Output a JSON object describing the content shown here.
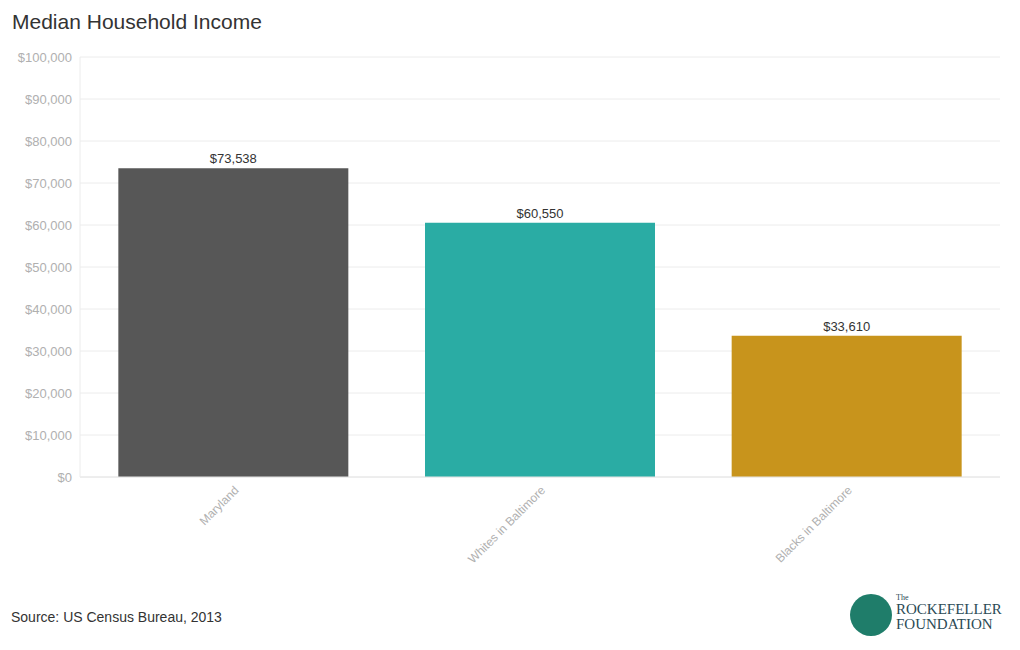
{
  "chart_data": {
    "type": "bar",
    "title": "Median Household Income",
    "categories": [
      "Maryland",
      "Whites in Baltimore",
      "Blacks in Baltimore"
    ],
    "values": [
      73538,
      60550,
      33610
    ],
    "value_labels": [
      "$73,538",
      "$60,550",
      "$33,610"
    ],
    "data_labels": true,
    "colors": [
      "#575757",
      "#2aaca4",
      "#c8941c"
    ],
    "ylim": [
      0,
      100000
    ],
    "yticks": [
      {
        "value": 0,
        "label": "$0"
      },
      {
        "value": 10000,
        "label": "$10,000"
      },
      {
        "value": 20000,
        "label": "$20,000"
      },
      {
        "value": 30000,
        "label": "$30,000"
      },
      {
        "value": 40000,
        "label": "$40,000"
      },
      {
        "value": 50000,
        "label": "$50,000"
      },
      {
        "value": 60000,
        "label": "$60,000"
      },
      {
        "value": 70000,
        "label": "$70,000"
      },
      {
        "value": 80000,
        "label": "$80,000"
      },
      {
        "value": 90000,
        "label": "$90,000"
      },
      {
        "value": 100000,
        "label": "$100,000"
      }
    ],
    "grid": true,
    "source": "Source: US Census Bureau, 2013",
    "logo": [
      "The",
      "ROCKEFELLER",
      "FOUNDATION"
    ]
  }
}
